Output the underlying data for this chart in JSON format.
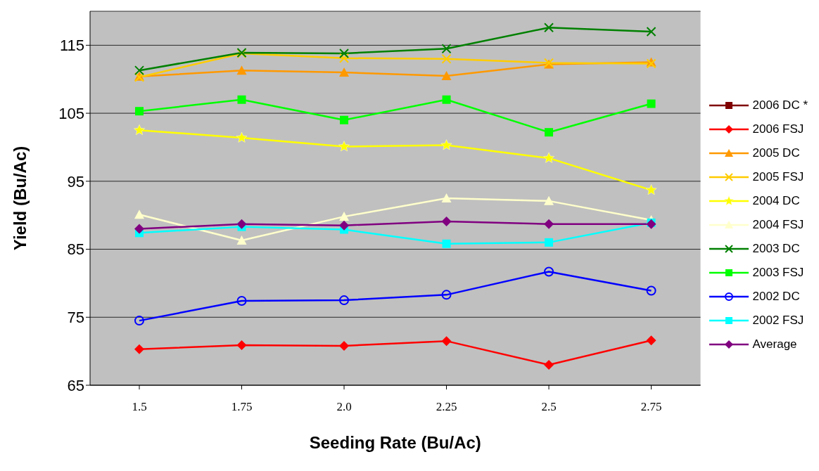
{
  "chart_data": {
    "type": "line",
    "xlabel": "Seeding Rate (Bu/Ac)",
    "ylabel": "Yield (Bu/Ac)",
    "categories": [
      "1.5",
      "1.75",
      "2.0",
      "2.25",
      "2.5",
      "2.75"
    ],
    "ylim": [
      65,
      120
    ],
    "yticks": [
      65,
      75,
      85,
      95,
      105,
      115
    ],
    "grid": "y",
    "legend": "right",
    "series": [
      {
        "name": "2006 DC *",
        "color": "#800000",
        "marker": "square",
        "values": [
          null,
          null,
          null,
          null,
          null,
          null
        ]
      },
      {
        "name": "2006 FSJ",
        "color": "#ff0000",
        "marker": "diamond",
        "values": [
          70.3,
          70.9,
          70.8,
          71.5,
          68.0,
          71.6
        ]
      },
      {
        "name": "2005 DC",
        "color": "#ff9900",
        "marker": "triangle",
        "values": [
          110.4,
          111.3,
          111.0,
          110.5,
          112.2,
          112.5
        ]
      },
      {
        "name": "2005 FSJ",
        "color": "#ffcc00",
        "marker": "cross",
        "values": [
          110.3,
          113.8,
          113.1,
          113.0,
          112.4,
          112.3
        ]
      },
      {
        "name": "2004 DC",
        "color": "#ffff00",
        "marker": "star",
        "values": [
          102.5,
          101.4,
          100.1,
          100.3,
          98.4,
          93.7
        ]
      },
      {
        "name": "2004 FSJ",
        "color": "#ffffcc",
        "marker": "triangle",
        "values": [
          90.1,
          86.3,
          89.8,
          92.5,
          92.1,
          89.3
        ]
      },
      {
        "name": "2003 DC",
        "color": "#008000",
        "marker": "cross",
        "values": [
          111.3,
          113.9,
          113.8,
          114.5,
          117.6,
          117.0
        ]
      },
      {
        "name": "2003 FSJ",
        "color": "#00ff00",
        "marker": "square",
        "values": [
          105.3,
          107.0,
          104.0,
          107.0,
          102.2,
          106.4
        ]
      },
      {
        "name": "2002 DC",
        "color": "#0000ff",
        "marker": "circle",
        "values": [
          74.5,
          77.4,
          77.5,
          78.3,
          81.7,
          78.9
        ]
      },
      {
        "name": "2002 FSJ",
        "color": "#00ffff",
        "marker": "square",
        "values": [
          87.4,
          88.3,
          87.9,
          85.8,
          86.0,
          88.9
        ]
      },
      {
        "name": "Average",
        "color": "#800080",
        "marker": "diamond",
        "values": [
          88.0,
          88.7,
          88.5,
          89.1,
          88.7,
          88.7
        ]
      }
    ]
  }
}
